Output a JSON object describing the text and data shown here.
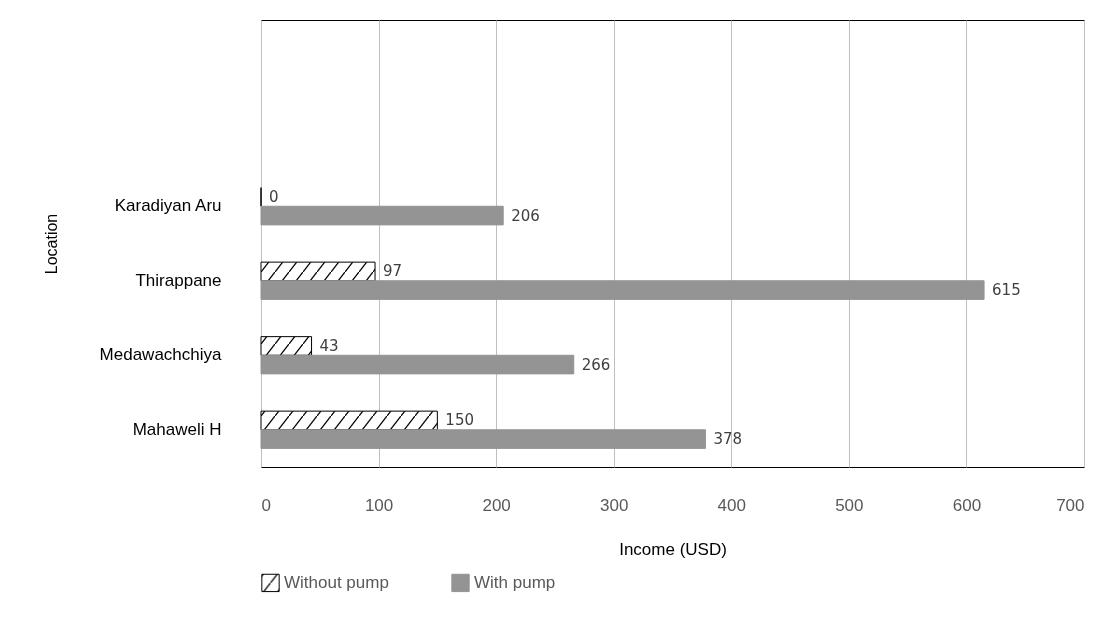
{
  "chart_data": {
    "type": "bar",
    "orientation": "horizontal",
    "categories": [
      null,
      null,
      "Karadiyan Aru",
      "Thirappane",
      "Medawachchiya",
      "Mahaweli H"
    ],
    "series": [
      {
        "name": "Without pump",
        "color": "#000000",
        "values": [
          null,
          null,
          0,
          97,
          43,
          150
        ]
      },
      {
        "name": "With pump",
        "color": "#949494",
        "values": [
          null,
          null,
          206,
          615,
          266,
          378
        ]
      }
    ],
    "xlabel": "Income (USD)",
    "ylabel": "Location",
    "xlim": [
      0,
      700
    ],
    "xticks": [
      0,
      100,
      200,
      300,
      400,
      500,
      600,
      700
    ],
    "grid": "x",
    "legend": "bottom",
    "data_labels": true
  }
}
